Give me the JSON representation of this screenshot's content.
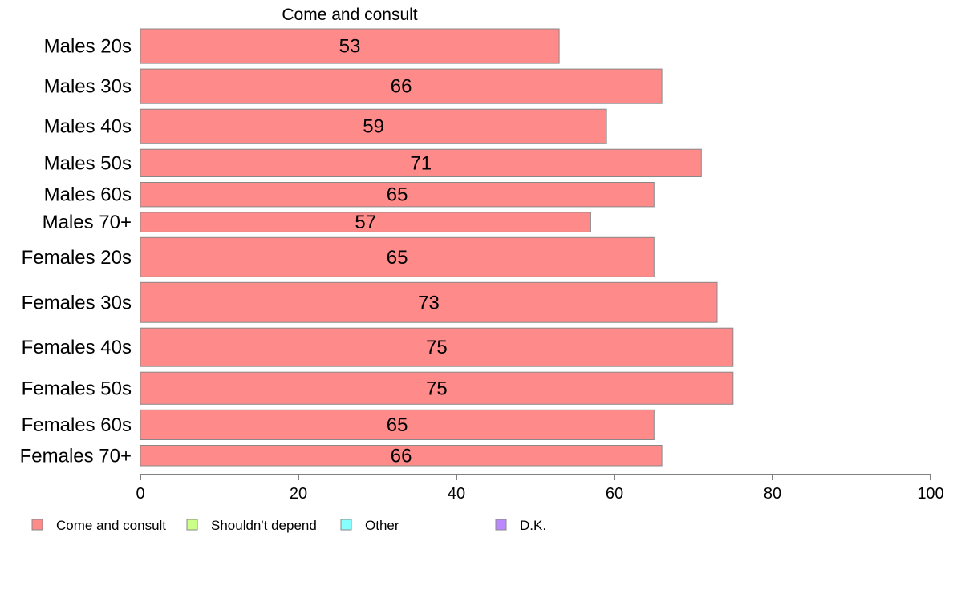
{
  "chart_data": {
    "type": "bar",
    "orientation": "horizontal",
    "panel_title": "Come and consult",
    "categories": [
      "Males 20s",
      "Males 30s",
      "Males 40s",
      "Males 50s",
      "Males 60s",
      "Males 70+",
      "Females 20s",
      "Females 30s",
      "Females 40s",
      "Females 50s",
      "Females 60s",
      "Females 70+"
    ],
    "category_weights": [
      44,
      44,
      44,
      35,
      31,
      25,
      50,
      51,
      49,
      41,
      38,
      26
    ],
    "series": [
      {
        "name": "Come and consult",
        "color": "#ff8a8a",
        "values": [
          53,
          66,
          59,
          71,
          65,
          57,
          65,
          73,
          75,
          75,
          65,
          66
        ],
        "value_labels": [
          "53",
          "66",
          "59",
          "71",
          "65",
          "57",
          "65",
          "73",
          "75",
          "75",
          "65",
          "66"
        ]
      }
    ],
    "xlim": [
      0,
      100
    ],
    "xticks": [
      0,
      20,
      40,
      60,
      80,
      100
    ],
    "xtick_labels": [
      "0",
      "20",
      "40",
      "60",
      "80",
      "100"
    ],
    "grid": false,
    "legend": {
      "placement": "bottom",
      "items": [
        {
          "label": "Come and consult",
          "color": "#ff8a8a"
        },
        {
          "label": "Shouldn't depend",
          "color": "#ccff88"
        },
        {
          "label": "Other",
          "color": "#88ffff"
        },
        {
          "label": "D.K.",
          "color": "#bb88ff"
        }
      ]
    }
  }
}
